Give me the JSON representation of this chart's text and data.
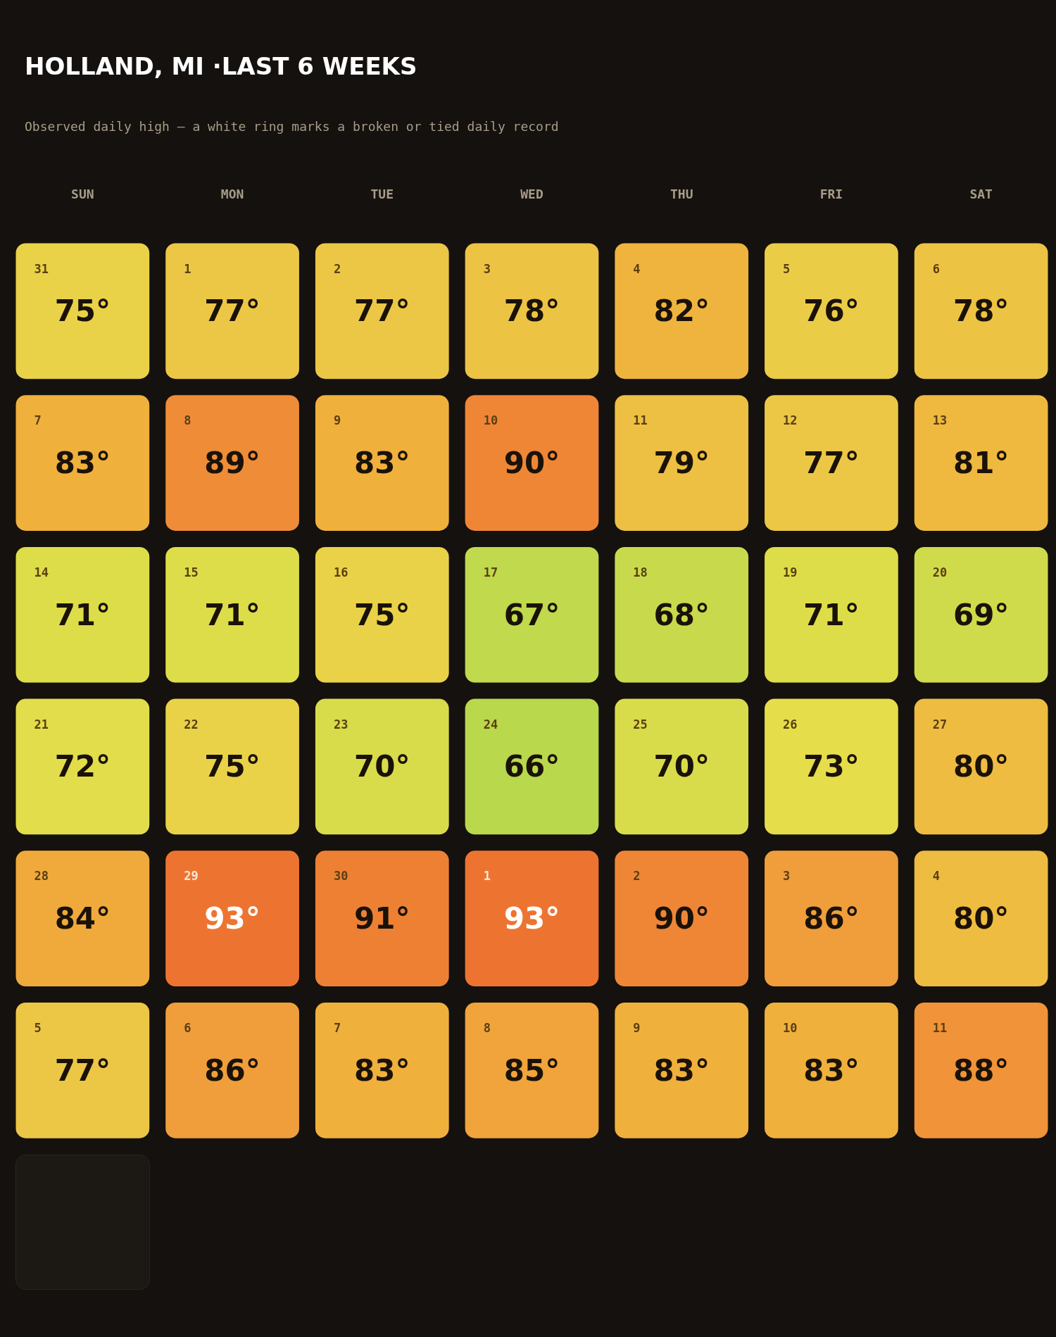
{
  "chart_data": {
    "type": "heatmap",
    "title": "HOLLAND, MI ·LAST 6 WEEKS",
    "subtitle": "Observed daily high — a white ring marks a broken or tied daily record",
    "categories": [
      "SUN",
      "MON",
      "TUE",
      "WED",
      "THU",
      "FRI",
      "SAT"
    ],
    "y_categories": [
      null,
      null,
      null,
      null,
      null,
      null
    ],
    "cells": [
      [
        75,
        77,
        77,
        78,
        82,
        76,
        78
      ],
      [
        83,
        89,
        83,
        90,
        79,
        77,
        81
      ],
      [
        71,
        71,
        75,
        67,
        68,
        71,
        69
      ],
      [
        72,
        75,
        70,
        66,
        70,
        73,
        80
      ],
      [
        84,
        93,
        91,
        93,
        90,
        86,
        80
      ],
      [
        77,
        86,
        83,
        85,
        83,
        83,
        88
      ]
    ],
    "cell_labels": [
      [
        "75°",
        "77°",
        "77°",
        "78°",
        "82°",
        "76°",
        "78°"
      ],
      [
        "83°",
        "89°",
        "83°",
        "90°",
        "79°",
        "77°",
        "81°"
      ],
      [
        "71°",
        "71°",
        "75°",
        "67°",
        "68°",
        "71°",
        "69°"
      ],
      [
        "72°",
        "75°",
        "70°",
        "66°",
        "70°",
        "73°",
        "80°"
      ],
      [
        "84°",
        "93°",
        "91°",
        "93°",
        "90°",
        "86°",
        "80°"
      ],
      [
        "77°",
        "86°",
        "83°",
        "85°",
        "83°",
        "83°",
        "88°"
      ]
    ],
    "annotations": [
      "31",
      "1",
      "2",
      "3",
      "4",
      "5",
      "6",
      "7",
      "8",
      "9",
      "10",
      "11",
      "12",
      "13",
      "14",
      "15",
      "16",
      "17",
      "18",
      "19",
      "20",
      "21",
      "22",
      "23",
      "24",
      "25",
      "26",
      "27",
      "28",
      "29",
      "30",
      "1",
      "2",
      "3",
      "4",
      "5",
      "6",
      "7",
      "8",
      "9",
      "10",
      "11"
    ]
  }
}
